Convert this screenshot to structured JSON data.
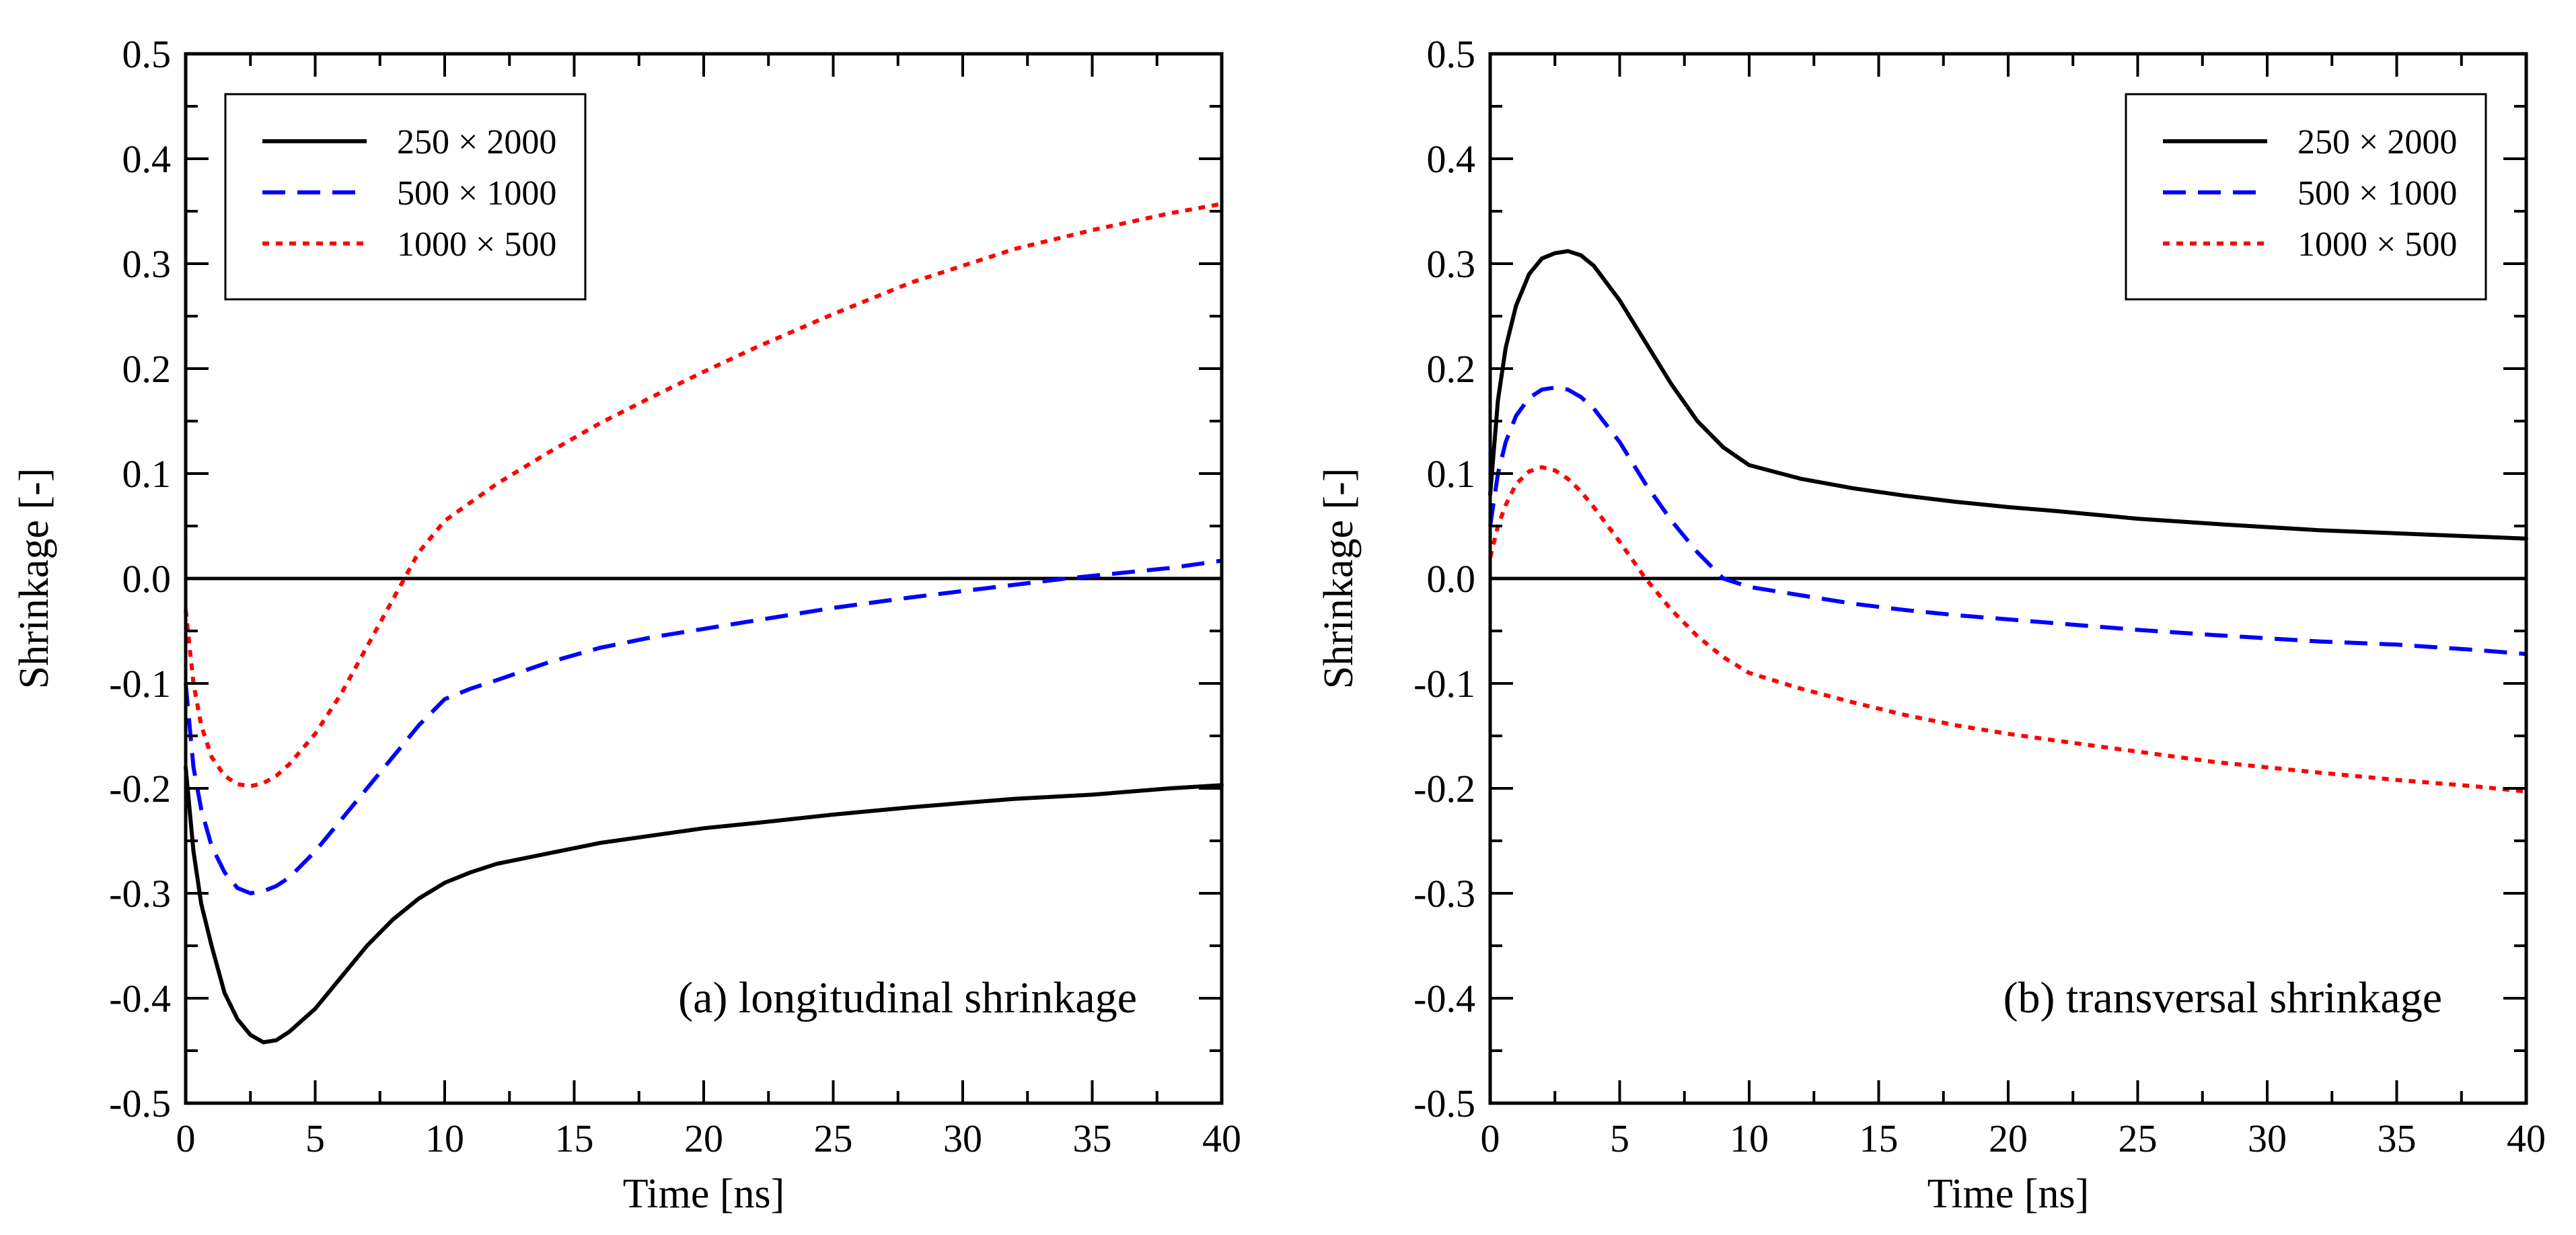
{
  "chart_data": [
    {
      "type": "line",
      "panel": "a",
      "annotation": "(a) longitudinal shrinkage",
      "xlabel": "Time [ns]",
      "ylabel": "Shrinkage [-]",
      "xlim": [
        0,
        40
      ],
      "ylim": [
        -0.5,
        0.5
      ],
      "xticks": [
        0,
        5,
        10,
        15,
        20,
        25,
        30,
        35,
        40
      ],
      "yticks": [
        -0.5,
        -0.4,
        -0.3,
        -0.2,
        -0.1,
        0.0,
        0.1,
        0.2,
        0.3,
        0.4,
        0.5
      ],
      "xtick_labels": [
        "0",
        "5",
        "10",
        "15",
        "20",
        "25",
        "30",
        "35",
        "40"
      ],
      "ytick_labels": [
        "-0.5",
        "-0.4",
        "-0.3",
        "-0.2",
        "-0.1",
        "0.0",
        "0.1",
        "0.2",
        "0.3",
        "0.4",
        "0.5"
      ],
      "legend_position": "top-left",
      "grid": false,
      "zero_line": true,
      "series": [
        {
          "name": "250 × 2000",
          "color": "#000000",
          "style": "solid",
          "x": [
            0,
            0.3,
            0.6,
            1,
            1.5,
            2,
            2.5,
            3,
            3.5,
            4,
            5,
            6,
            7,
            8,
            9,
            10,
            11,
            12,
            14,
            16,
            18,
            20,
            22,
            25,
            28,
            30,
            32,
            35,
            38,
            40
          ],
          "y": [
            -0.18,
            -0.26,
            -0.31,
            -0.35,
            -0.395,
            -0.42,
            -0.435,
            -0.442,
            -0.44,
            -0.432,
            -0.41,
            -0.38,
            -0.35,
            -0.325,
            -0.305,
            -0.29,
            -0.28,
            -0.272,
            -0.262,
            -0.252,
            -0.245,
            -0.238,
            -0.233,
            -0.225,
            -0.218,
            -0.214,
            -0.21,
            -0.206,
            -0.2,
            -0.197
          ]
        },
        {
          "name": "500 × 1000",
          "color": "#0000ff",
          "style": "dashed",
          "x": [
            0,
            0.3,
            0.6,
            1,
            1.5,
            2,
            2.5,
            3,
            3.5,
            4,
            5,
            6,
            7,
            8,
            9,
            10,
            11,
            12,
            14,
            16,
            18,
            20,
            22,
            25,
            28,
            30,
            32,
            34,
            36,
            38,
            40
          ],
          "y": [
            -0.1,
            -0.18,
            -0.22,
            -0.255,
            -0.28,
            -0.295,
            -0.3,
            -0.298,
            -0.293,
            -0.285,
            -0.26,
            -0.23,
            -0.2,
            -0.17,
            -0.14,
            -0.115,
            -0.105,
            -0.097,
            -0.08,
            -0.066,
            -0.056,
            -0.048,
            -0.04,
            -0.028,
            -0.018,
            -0.012,
            -0.006,
            0.0,
            0.005,
            0.01,
            0.017
          ]
        },
        {
          "name": "1000 × 500",
          "color": "#ff0000",
          "style": "dotted",
          "x": [
            0,
            0.3,
            0.6,
            1,
            1.5,
            2,
            2.5,
            3,
            3.5,
            4,
            5,
            6,
            7,
            8,
            9,
            10,
            12,
            14,
            16,
            18,
            20,
            22,
            25,
            28,
            30,
            32,
            35,
            38,
            40
          ],
          "y": [
            -0.03,
            -0.1,
            -0.14,
            -0.17,
            -0.188,
            -0.196,
            -0.198,
            -0.195,
            -0.188,
            -0.177,
            -0.148,
            -0.11,
            -0.065,
            -0.02,
            0.025,
            0.055,
            0.09,
            0.12,
            0.148,
            0.173,
            0.197,
            0.22,
            0.252,
            0.282,
            0.298,
            0.314,
            0.332,
            0.348,
            0.357
          ]
        }
      ]
    },
    {
      "type": "line",
      "panel": "b",
      "annotation": "(b) transversal shrinkage",
      "xlabel": "Time [ns]",
      "ylabel": "Shrinkage [-]",
      "xlim": [
        0,
        40
      ],
      "ylim": [
        -0.5,
        0.5
      ],
      "xticks": [
        0,
        5,
        10,
        15,
        20,
        25,
        30,
        35,
        40
      ],
      "yticks": [
        -0.5,
        -0.4,
        -0.3,
        -0.2,
        -0.1,
        0.0,
        0.1,
        0.2,
        0.3,
        0.4,
        0.5
      ],
      "xtick_labels": [
        "0",
        "5",
        "10",
        "15",
        "20",
        "25",
        "30",
        "35",
        "40"
      ],
      "ytick_labels": [
        "-0.5",
        "-0.4",
        "-0.3",
        "-0.2",
        "-0.1",
        "0.0",
        "0.1",
        "0.2",
        "0.3",
        "0.4",
        "0.5"
      ],
      "legend_position": "top-right",
      "grid": false,
      "zero_line": true,
      "series": [
        {
          "name": "250 × 2000",
          "color": "#000000",
          "style": "solid",
          "x": [
            0,
            0.3,
            0.6,
            1,
            1.5,
            2,
            2.5,
            3,
            3.5,
            4,
            5,
            6,
            7,
            8,
            9,
            10,
            12,
            14,
            16,
            18,
            20,
            22,
            25,
            28,
            30,
            32,
            35,
            38,
            40
          ],
          "y": [
            0.08,
            0.17,
            0.22,
            0.26,
            0.29,
            0.305,
            0.31,
            0.312,
            0.308,
            0.298,
            0.265,
            0.225,
            0.185,
            0.15,
            0.125,
            0.108,
            0.095,
            0.086,
            0.079,
            0.073,
            0.068,
            0.064,
            0.057,
            0.052,
            0.049,
            0.046,
            0.043,
            0.04,
            0.038
          ]
        },
        {
          "name": "500 × 1000",
          "color": "#0000ff",
          "style": "dashed",
          "x": [
            0,
            0.3,
            0.6,
            1,
            1.5,
            2,
            2.5,
            3,
            3.5,
            4,
            5,
            6,
            7,
            8,
            9,
            10,
            12,
            14,
            16,
            18,
            20,
            22,
            25,
            28,
            30,
            32,
            35,
            38,
            40
          ],
          "y": [
            0.05,
            0.1,
            0.13,
            0.155,
            0.172,
            0.18,
            0.182,
            0.18,
            0.173,
            0.162,
            0.13,
            0.09,
            0.055,
            0.025,
            0.0,
            -0.008,
            -0.016,
            -0.024,
            -0.03,
            -0.035,
            -0.039,
            -0.043,
            -0.049,
            -0.054,
            -0.057,
            -0.06,
            -0.063,
            -0.068,
            -0.072
          ]
        },
        {
          "name": "1000 × 500",
          "color": "#ff0000",
          "style": "dotted",
          "x": [
            0,
            0.3,
            0.6,
            1,
            1.5,
            2,
            2.5,
            3,
            3.5,
            4,
            5,
            6,
            7,
            8,
            9,
            10,
            12,
            14,
            16,
            18,
            20,
            22,
            25,
            28,
            30,
            32,
            35,
            38,
            40
          ],
          "y": [
            0.02,
            0.05,
            0.07,
            0.09,
            0.102,
            0.106,
            0.103,
            0.095,
            0.083,
            0.068,
            0.035,
            0.0,
            -0.03,
            -0.055,
            -0.075,
            -0.09,
            -0.105,
            -0.118,
            -0.13,
            -0.14,
            -0.148,
            -0.155,
            -0.165,
            -0.175,
            -0.18,
            -0.185,
            -0.192,
            -0.198,
            -0.203
          ]
        }
      ]
    }
  ]
}
